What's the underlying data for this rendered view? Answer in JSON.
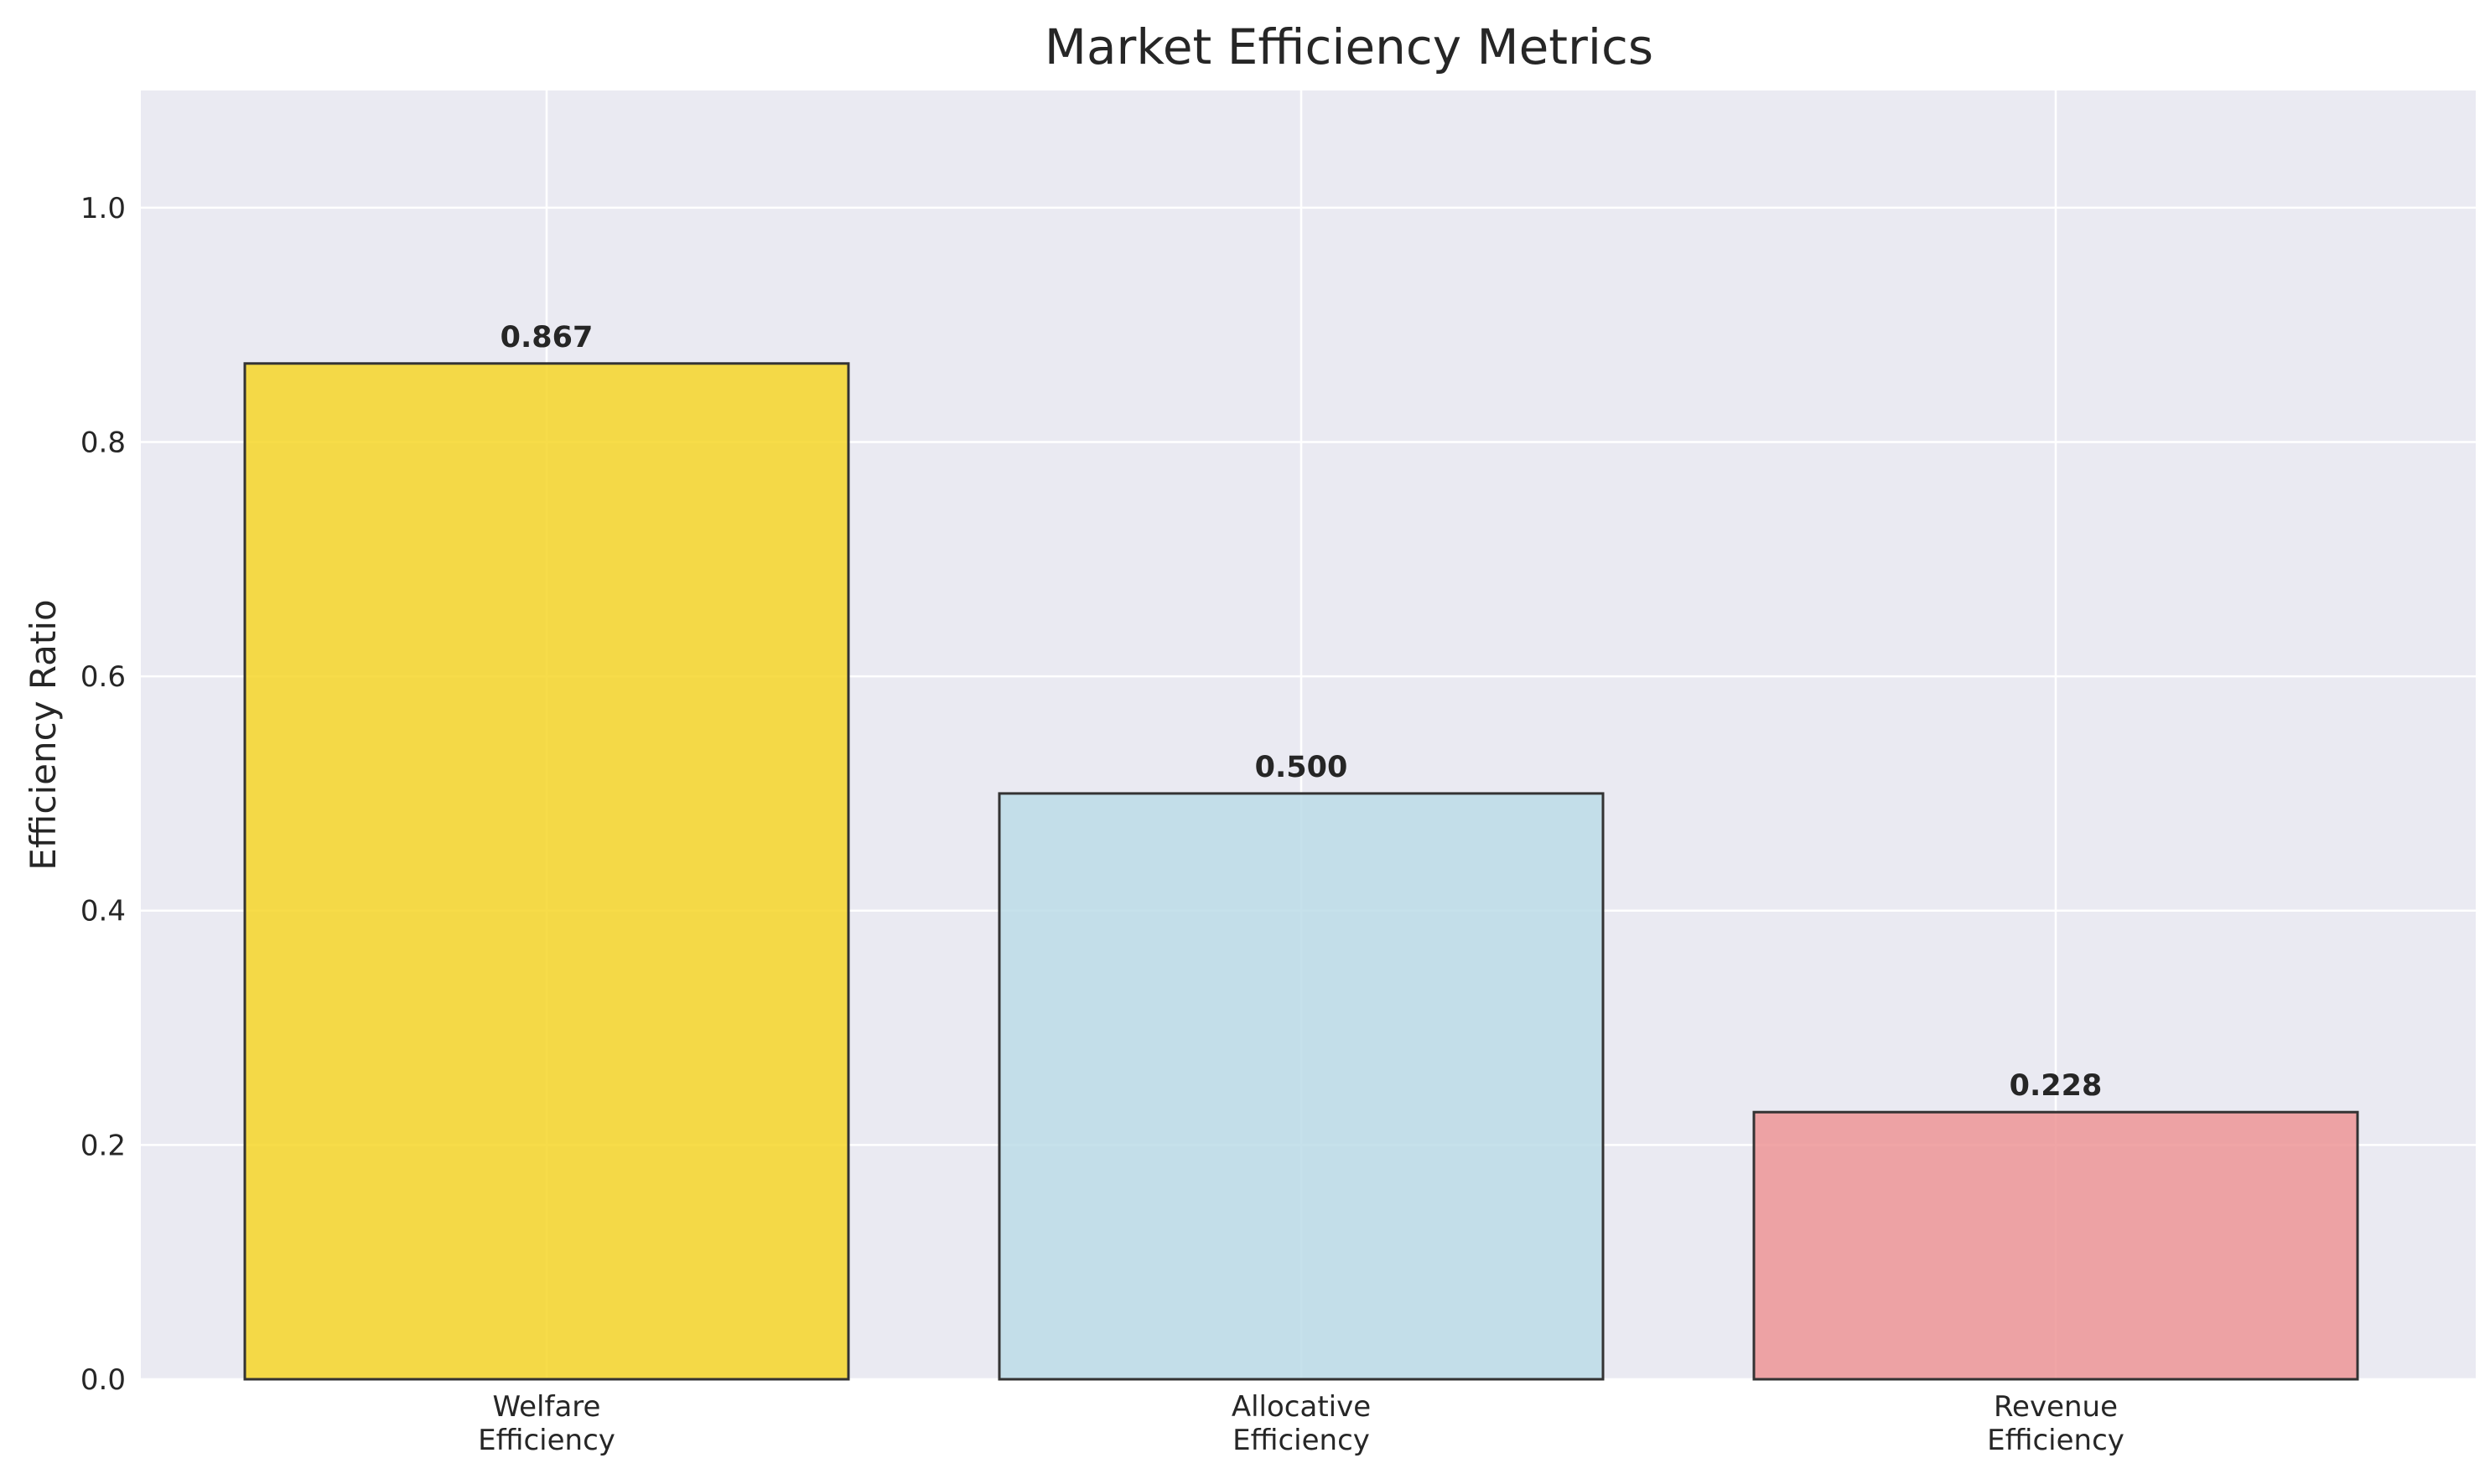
{
  "chart_data": {
    "type": "bar",
    "title": "Market Efficiency Metrics",
    "xlabel": "",
    "ylabel": "Efficiency Ratio",
    "ylim": [
      0,
      1.1
    ],
    "yticks": [
      0.0,
      0.2,
      0.4,
      0.6,
      0.8,
      1.0
    ],
    "ytick_labels": [
      "0.0",
      "0.2",
      "0.4",
      "0.6",
      "0.8",
      "1.0"
    ],
    "categories": [
      [
        "Welfare",
        "Efficiency"
      ],
      [
        "Allocative",
        "Efficiency"
      ],
      [
        "Revenue",
        "Efficiency"
      ]
    ],
    "values": [
      0.867,
      0.5,
      0.228
    ],
    "data_labels": [
      "0.867",
      "0.500",
      "0.228"
    ],
    "colors": [
      "#F6D629",
      "#BCDCE7",
      "#ED9597"
    ],
    "background_color": "#EAEAF2",
    "grid": true,
    "legend": "none"
  }
}
